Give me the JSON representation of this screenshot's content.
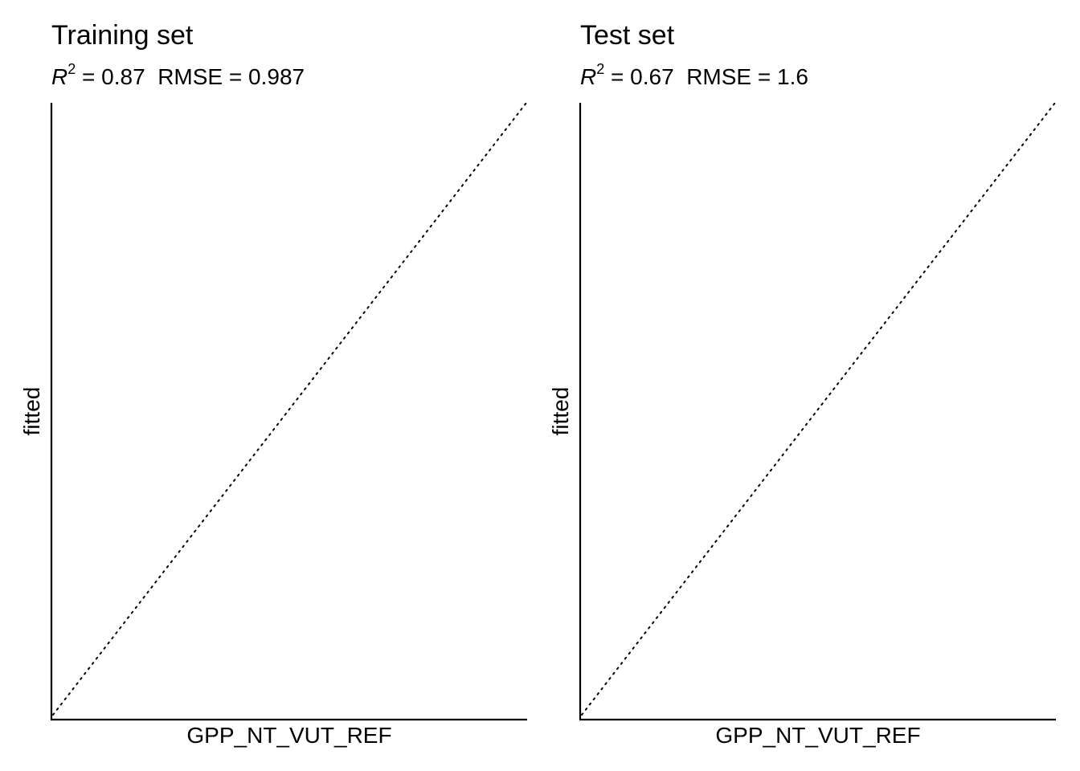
{
  "chart_data": [
    {
      "type": "scatter",
      "title": "Training set",
      "metrics": {
        "r2_symbol": "R",
        "r2_power": "2",
        "r2_text": " = 0.87",
        "rmse_text": "  RMSE = 0.987"
      },
      "r2": 0.87,
      "rmse": 0.987,
      "xlabel": "GPP_NT_VUT_REF",
      "ylabel": "fitted",
      "reference_line": {
        "type": "identity",
        "slope": 1,
        "intercept": 0,
        "style": "dotted"
      },
      "points": [],
      "grid": false
    },
    {
      "type": "scatter",
      "title": "Test set",
      "metrics": {
        "r2_symbol": "R",
        "r2_power": "2",
        "r2_text": " = 0.67",
        "rmse_text": "  RMSE = 1.6"
      },
      "r2": 0.67,
      "rmse": 1.6,
      "xlabel": "GPP_NT_VUT_REF",
      "ylabel": "fitted",
      "reference_line": {
        "type": "identity",
        "slope": 1,
        "intercept": 0,
        "style": "dotted"
      },
      "points": [],
      "grid": false
    }
  ]
}
